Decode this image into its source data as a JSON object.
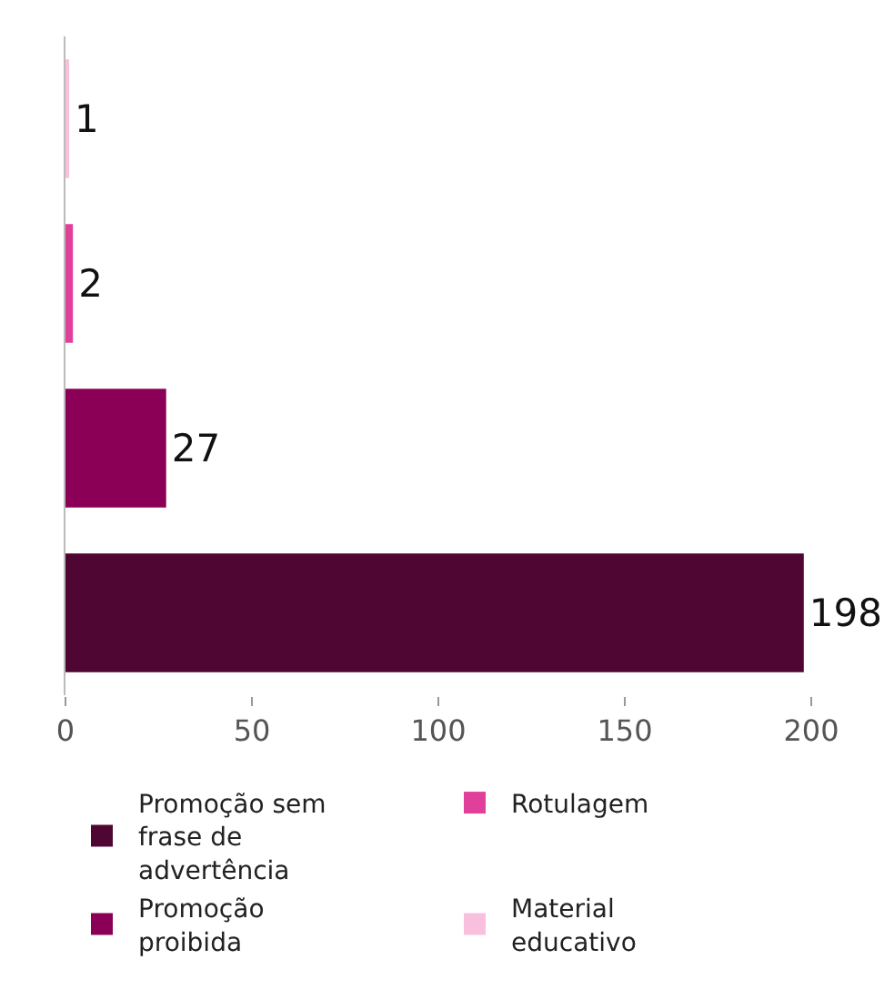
{
  "chart_data": {
    "type": "bar",
    "orientation": "horizontal",
    "categories": [
      null,
      null,
      null,
      null
    ],
    "series": [
      {
        "name": "Promoção sem frase de advertência",
        "color": "#4f0633",
        "values": [
          null,
          null,
          null,
          198
        ]
      },
      {
        "name": "Rotulagem",
        "color": "#e0409a",
        "values": [
          null,
          2,
          null,
          null
        ]
      },
      {
        "name": "Promoção proibida",
        "color": "#8b0056",
        "values": [
          null,
          null,
          27,
          null
        ]
      },
      {
        "name": "Material educativo",
        "color": "#f9c0de",
        "values": [
          1,
          null,
          null,
          null
        ]
      }
    ],
    "xlim": [
      0,
      200
    ],
    "xticks": [
      0,
      50,
      100,
      150,
      200
    ],
    "data_labels": true,
    "grid": false,
    "legend": "bottom",
    "tick_labels": "x"
  }
}
